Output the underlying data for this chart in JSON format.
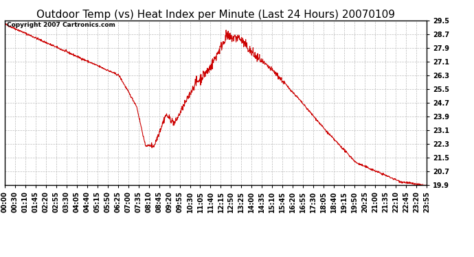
{
  "title": "Outdoor Temp (vs) Heat Index per Minute (Last 24 Hours) 20070109",
  "copyright_text": "Copyright 2007 Cartronics.com",
  "line_color": "#cc0000",
  "background_color": "#ffffff",
  "grid_color": "#bbbbbb",
  "ylim": [
    19.9,
    29.5
  ],
  "yticks": [
    19.9,
    20.7,
    21.5,
    22.3,
    23.1,
    23.9,
    24.7,
    25.5,
    26.3,
    27.1,
    27.9,
    28.7,
    29.5
  ],
  "xtick_labels": [
    "00:00",
    "00:30",
    "01:10",
    "01:45",
    "02:20",
    "02:55",
    "03:30",
    "04:05",
    "04:40",
    "05:15",
    "05:50",
    "06:25",
    "07:00",
    "07:35",
    "08:10",
    "08:45",
    "09:20",
    "09:55",
    "10:30",
    "11:05",
    "11:40",
    "12:15",
    "12:50",
    "13:25",
    "14:00",
    "14:35",
    "15:10",
    "15:45",
    "16:20",
    "16:55",
    "17:30",
    "18:05",
    "18:40",
    "19:15",
    "19:50",
    "20:25",
    "21:00",
    "21:35",
    "22:10",
    "22:45",
    "23:20",
    "23:55"
  ],
  "title_fontsize": 11,
  "tick_fontsize": 7,
  "copyright_fontsize": 6.5,
  "figwidth": 6.9,
  "figheight": 3.75,
  "dpi": 100
}
